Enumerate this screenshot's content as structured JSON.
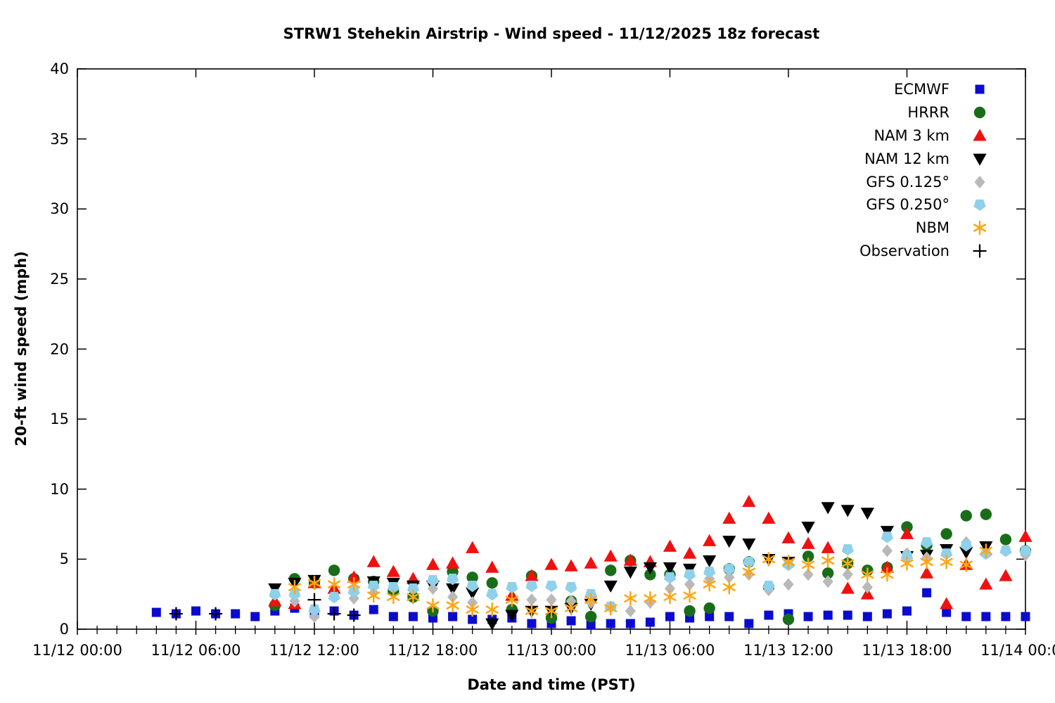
{
  "title": "STRW1 Stehekin Airstrip - Wind speed - 11/12/2025 18z forecast",
  "chart_data": {
    "type": "scatter",
    "title": "STRW1 Stehekin Airstrip - Wind speed - 11/12/2025 18z forecast",
    "xlabel": "Date and time (PST)",
    "ylabel": "20-ft wind speed (mph)",
    "x_unit": "hours since 11/12 00:00 PST",
    "xlim": [
      0,
      48
    ],
    "ylim": [
      0,
      40
    ],
    "grid": false,
    "legend_position": "top-right-inside",
    "x_minor_tick_hours": 1,
    "xticks": [
      {
        "t": 0,
        "label": "11/12 00:00"
      },
      {
        "t": 6,
        "label": "11/12 06:00"
      },
      {
        "t": 12,
        "label": "11/12 12:00"
      },
      {
        "t": 18,
        "label": "11/12 18:00"
      },
      {
        "t": 24,
        "label": "11/13 00:00"
      },
      {
        "t": 30,
        "label": "11/13 06:00"
      },
      {
        "t": 36,
        "label": "11/13 12:00"
      },
      {
        "t": 42,
        "label": "11/13 18:00"
      },
      {
        "t": 48,
        "label": "11/14 00:00"
      }
    ],
    "yticks": [
      0,
      5,
      10,
      15,
      20,
      25,
      30,
      35,
      40
    ],
    "series": [
      {
        "name": "ECMWF",
        "marker": "square",
        "color": "#0b0bd0",
        "points": [
          [
            4,
            1.2
          ],
          [
            5,
            1.1
          ],
          [
            6,
            1.3
          ],
          [
            7,
            1.1
          ],
          [
            8,
            1.1
          ],
          [
            9,
            0.9
          ],
          [
            10,
            1.3
          ],
          [
            11,
            1.5
          ],
          [
            12,
            1.1
          ],
          [
            13,
            1.3
          ],
          [
            14,
            1.0
          ],
          [
            15,
            1.4
          ],
          [
            16,
            0.9
          ],
          [
            17,
            0.9
          ],
          [
            18,
            0.8
          ],
          [
            19,
            0.9
          ],
          [
            20,
            0.7
          ],
          [
            21,
            0.7
          ],
          [
            22,
            0.8
          ],
          [
            23,
            0.4
          ],
          [
            24,
            0.4
          ],
          [
            25,
            0.6
          ],
          [
            26,
            0.3
          ],
          [
            27,
            0.4
          ],
          [
            28,
            0.4
          ],
          [
            29,
            0.5
          ],
          [
            30,
            0.9
          ],
          [
            31,
            0.8
          ],
          [
            32,
            0.9
          ],
          [
            33,
            0.9
          ],
          [
            34,
            0.4
          ],
          [
            35,
            1.0
          ],
          [
            36,
            1.1
          ],
          [
            37,
            0.9
          ],
          [
            38,
            1.0
          ],
          [
            39,
            1.0
          ],
          [
            40,
            0.9
          ],
          [
            41,
            1.1
          ],
          [
            42,
            1.3
          ],
          [
            43,
            2.6
          ],
          [
            44,
            1.2
          ],
          [
            45,
            0.9
          ],
          [
            46,
            0.9
          ],
          [
            47,
            0.9
          ],
          [
            48,
            0.9
          ]
        ]
      },
      {
        "name": "HRRR",
        "marker": "circle",
        "color": "#186e18",
        "points": [
          [
            10,
            1.7
          ],
          [
            11,
            3.6
          ],
          [
            12,
            3.3
          ],
          [
            13,
            4.2
          ],
          [
            14,
            3.6
          ],
          [
            15,
            3.4
          ],
          [
            16,
            2.7
          ],
          [
            17,
            2.3
          ],
          [
            18,
            1.3
          ],
          [
            19,
            4.1
          ],
          [
            20,
            3.7
          ],
          [
            21,
            3.3
          ],
          [
            22,
            1.4
          ],
          [
            23,
            3.8
          ],
          [
            24,
            0.8
          ],
          [
            25,
            2.0
          ],
          [
            26,
            0.9
          ],
          [
            27,
            4.2
          ],
          [
            28,
            4.9
          ],
          [
            29,
            3.9
          ],
          [
            30,
            3.9
          ],
          [
            31,
            1.3
          ],
          [
            32,
            1.5
          ],
          [
            33,
            4.3
          ],
          [
            34,
            4.8
          ],
          [
            35,
            3.0
          ],
          [
            36,
            0.7
          ],
          [
            37,
            5.2
          ],
          [
            38,
            4.0
          ],
          [
            39,
            4.7
          ],
          [
            40,
            4.2
          ],
          [
            41,
            4.4
          ],
          [
            42,
            7.3
          ],
          [
            43,
            6.0
          ],
          [
            44,
            6.8
          ],
          [
            45,
            8.1
          ],
          [
            46,
            8.2
          ],
          [
            47,
            6.4
          ],
          [
            48,
            5.6
          ]
        ]
      },
      {
        "name": "NAM 3 km",
        "marker": "triangle-up",
        "color": "#f01010",
        "points": [
          [
            10,
            2.0
          ],
          [
            11,
            1.8
          ],
          [
            12,
            3.3
          ],
          [
            13,
            2.9
          ],
          [
            14,
            3.7
          ],
          [
            15,
            4.8
          ],
          [
            16,
            4.1
          ],
          [
            17,
            3.6
          ],
          [
            18,
            4.6
          ],
          [
            19,
            4.7
          ],
          [
            20,
            5.8
          ],
          [
            21,
            4.4
          ],
          [
            22,
            2.4
          ],
          [
            23,
            3.8
          ],
          [
            24,
            4.6
          ],
          [
            25,
            4.5
          ],
          [
            26,
            4.7
          ],
          [
            27,
            5.2
          ],
          [
            28,
            4.9
          ],
          [
            29,
            4.8
          ],
          [
            30,
            5.9
          ],
          [
            31,
            5.4
          ],
          [
            32,
            6.3
          ],
          [
            33,
            7.9
          ],
          [
            34,
            9.1
          ],
          [
            35,
            7.9
          ],
          [
            36,
            6.5
          ],
          [
            37,
            6.1
          ],
          [
            38,
            5.8
          ],
          [
            39,
            2.9
          ],
          [
            40,
            2.5
          ],
          [
            41,
            4.4
          ],
          [
            42,
            6.8
          ],
          [
            43,
            4.0
          ],
          [
            44,
            1.8
          ],
          [
            45,
            4.6
          ],
          [
            46,
            3.2
          ],
          [
            47,
            3.8
          ],
          [
            48,
            6.6
          ]
        ]
      },
      {
        "name": "NAM 12 km",
        "marker": "triangle-down",
        "color": "#000000",
        "points": [
          [
            10,
            2.9
          ],
          [
            11,
            3.3
          ],
          [
            12,
            3.5
          ],
          [
            15,
            3.4
          ],
          [
            16,
            3.3
          ],
          [
            17,
            3.1
          ],
          [
            18,
            3.1
          ],
          [
            19,
            2.9
          ],
          [
            20,
            2.6
          ],
          [
            21,
            0.4
          ],
          [
            22,
            1.0
          ],
          [
            23,
            1.3
          ],
          [
            24,
            1.3
          ],
          [
            25,
            1.5
          ],
          [
            26,
            1.8
          ],
          [
            27,
            3.1
          ],
          [
            28,
            4.1
          ],
          [
            29,
            4.4
          ],
          [
            30,
            4.4
          ],
          [
            31,
            4.3
          ],
          [
            32,
            4.9
          ],
          [
            33,
            6.3
          ],
          [
            34,
            6.1
          ],
          [
            35,
            5.0
          ],
          [
            36,
            4.8
          ],
          [
            37,
            7.3
          ],
          [
            38,
            8.7
          ],
          [
            39,
            8.5
          ],
          [
            40,
            8.3
          ],
          [
            41,
            7.0
          ],
          [
            42,
            5.2
          ],
          [
            43,
            5.3
          ],
          [
            44,
            5.7
          ],
          [
            45,
            5.5
          ],
          [
            46,
            5.9
          ]
        ]
      },
      {
        "name": "GFS 0.125°",
        "marker": "diamond",
        "color": "#b9b9b9",
        "points": [
          [
            11,
            2.0
          ],
          [
            12,
            0.9
          ],
          [
            14,
            2.2
          ],
          [
            15,
            2.6
          ],
          [
            18,
            2.9
          ],
          [
            19,
            2.3
          ],
          [
            20,
            1.9
          ],
          [
            23,
            2.1
          ],
          [
            24,
            2.1
          ],
          [
            25,
            2.0
          ],
          [
            26,
            1.9
          ],
          [
            28,
            1.3
          ],
          [
            29,
            1.9
          ],
          [
            30,
            2.9
          ],
          [
            31,
            3.2
          ],
          [
            32,
            3.6
          ],
          [
            33,
            3.7
          ],
          [
            34,
            3.9
          ],
          [
            35,
            2.8
          ],
          [
            36,
            3.2
          ],
          [
            37,
            3.9
          ],
          [
            38,
            3.4
          ],
          [
            39,
            3.9
          ],
          [
            40,
            3.0
          ],
          [
            41,
            5.6
          ],
          [
            42,
            5.4
          ],
          [
            43,
            5.1
          ],
          [
            45,
            6.2
          ],
          [
            48,
            5.3
          ]
        ]
      },
      {
        "name": "GFS 0.250°",
        "marker": "pentagon",
        "color": "#8fd0ea",
        "points": [
          [
            10,
            2.5
          ],
          [
            11,
            2.5
          ],
          [
            12,
            1.4
          ],
          [
            13,
            2.3
          ],
          [
            14,
            2.7
          ],
          [
            15,
            3.1
          ],
          [
            16,
            3.0
          ],
          [
            17,
            2.9
          ],
          [
            18,
            3.5
          ],
          [
            19,
            3.6
          ],
          [
            20,
            3.1
          ],
          [
            21,
            2.5
          ],
          [
            22,
            3.0
          ],
          [
            23,
            3.1
          ],
          [
            24,
            3.1
          ],
          [
            25,
            3.0
          ],
          [
            26,
            2.5
          ],
          [
            27,
            1.6
          ],
          [
            30,
            3.7
          ],
          [
            31,
            3.9
          ],
          [
            32,
            4.1
          ],
          [
            33,
            4.3
          ],
          [
            34,
            4.8
          ],
          [
            35,
            3.1
          ],
          [
            36,
            4.6
          ],
          [
            39,
            5.7
          ],
          [
            41,
            6.6
          ],
          [
            42,
            5.2
          ],
          [
            43,
            6.2
          ],
          [
            44,
            5.4
          ],
          [
            45,
            6.0
          ],
          [
            46,
            5.4
          ],
          [
            47,
            5.6
          ],
          [
            48,
            5.6
          ]
        ]
      },
      {
        "name": "NBM",
        "marker": "asterisk",
        "color": "#ffa513",
        "points": [
          [
            11,
            3.0
          ],
          [
            12,
            3.3
          ],
          [
            13,
            3.2
          ],
          [
            14,
            3.2
          ],
          [
            15,
            2.4
          ],
          [
            16,
            2.3
          ],
          [
            17,
            2.3
          ],
          [
            18,
            1.7
          ],
          [
            19,
            1.7
          ],
          [
            20,
            1.4
          ],
          [
            21,
            1.4
          ],
          [
            22,
            2.1
          ],
          [
            23,
            1.3
          ],
          [
            24,
            1.3
          ],
          [
            25,
            1.5
          ],
          [
            26,
            2.1
          ],
          [
            27,
            1.5
          ],
          [
            28,
            2.2
          ],
          [
            29,
            2.2
          ],
          [
            30,
            2.3
          ],
          [
            31,
            2.4
          ],
          [
            32,
            3.2
          ],
          [
            33,
            3.0
          ],
          [
            34,
            4.1
          ],
          [
            35,
            5.0
          ],
          [
            36,
            4.8
          ],
          [
            37,
            4.6
          ],
          [
            38,
            4.9
          ],
          [
            39,
            4.7
          ],
          [
            40,
            3.9
          ],
          [
            41,
            3.9
          ],
          [
            42,
            4.7
          ],
          [
            43,
            4.8
          ],
          [
            44,
            4.8
          ],
          [
            45,
            4.6
          ],
          [
            46,
            5.6
          ]
        ]
      },
      {
        "name": "Observation",
        "marker": "plus",
        "color": "#000000",
        "points": [
          [
            5,
            1.1
          ],
          [
            7,
            1.1
          ],
          [
            12,
            2.1
          ],
          [
            13,
            1.1
          ],
          [
            14,
            1.0
          ]
        ]
      }
    ]
  }
}
